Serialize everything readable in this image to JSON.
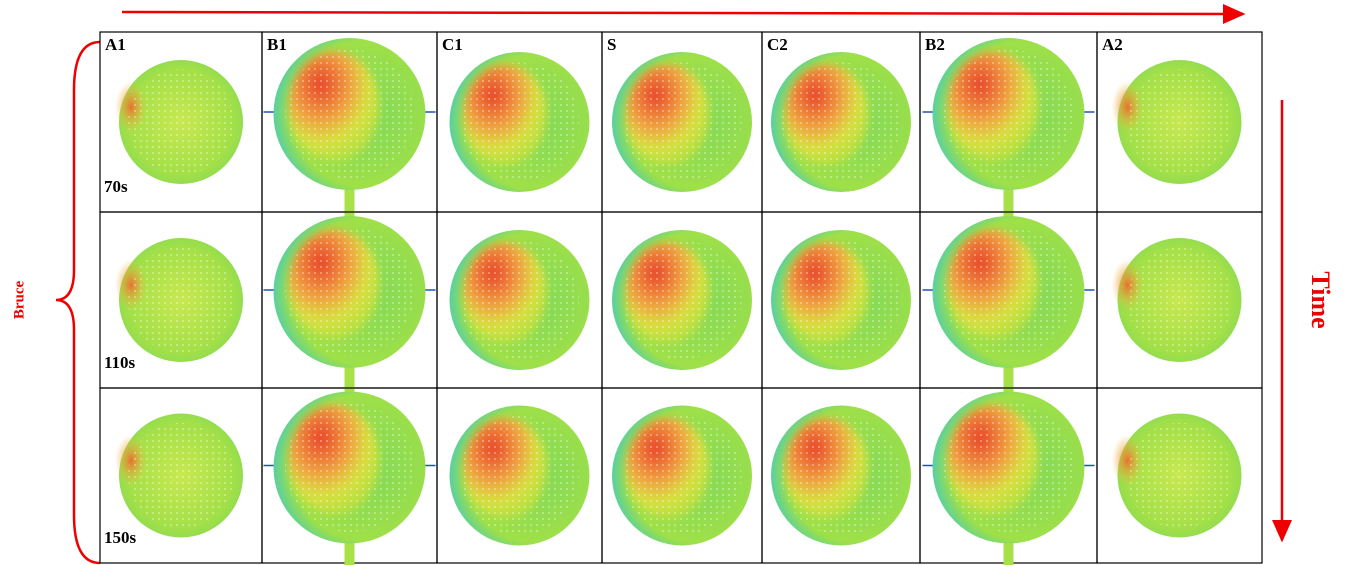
{
  "columns": [
    "A1",
    "B1",
    "C1",
    "S",
    "C2",
    "B2",
    "A2"
  ],
  "rows": [
    "70s",
    "110s",
    "150s"
  ],
  "left_label": "Bruce",
  "right_label": "Time"
}
